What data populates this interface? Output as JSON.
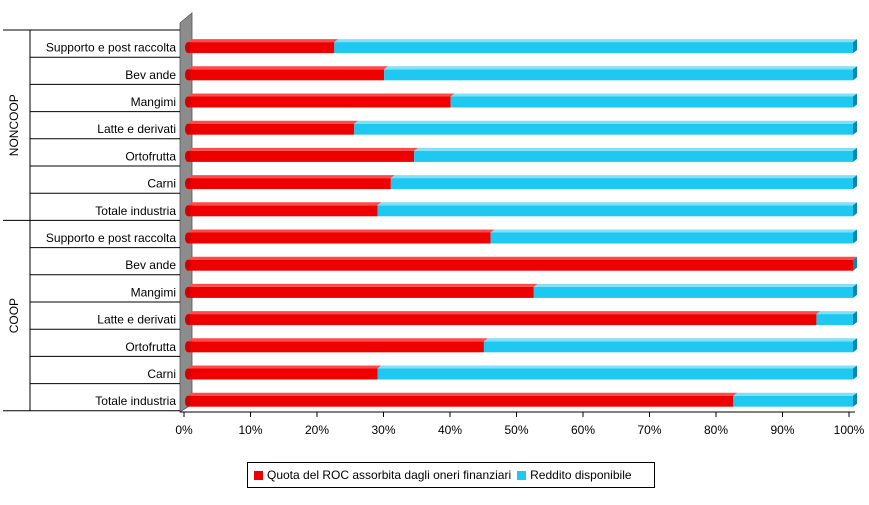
{
  "chart_data": {
    "type": "bar",
    "orientation": "horizontal",
    "stacked": "100%",
    "groups": [
      {
        "name": "NONCOOP",
        "categories": [
          "Supporto e post raccolta",
          "Bev ande",
          "Mangimi",
          "Latte e derivati",
          "Ortofrutta",
          "Carni",
          "Totale industria"
        ]
      },
      {
        "name": "COOP",
        "categories": [
          "Supporto e post raccolta",
          "Bev ande",
          "Mangimi",
          "Latte e derivati",
          "Ortofrutta",
          "Carni",
          "Totale industria"
        ]
      }
    ],
    "series": [
      {
        "name": "Quota del ROC assorbita dagli oneri finanziari",
        "color": "#ee0000",
        "values": [
          22,
          29.5,
          39.5,
          25,
          34,
          30.5,
          28.5,
          45.5,
          100,
          52,
          94.5,
          44.5,
          28.5,
          82
        ]
      },
      {
        "name": "Reddito disponibile",
        "color": "#1ec8f0",
        "values": [
          78,
          70.5,
          60.5,
          75,
          66,
          69.5,
          71.5,
          54.5,
          0,
          48,
          5.5,
          55.5,
          71.5,
          18
        ]
      }
    ],
    "x_ticks": [
      "0%",
      "10%",
      "20%",
      "30%",
      "40%",
      "50%",
      "60%",
      "70%",
      "80%",
      "90%",
      "100%"
    ],
    "xlim": [
      0,
      100
    ],
    "legend": "bottom"
  }
}
